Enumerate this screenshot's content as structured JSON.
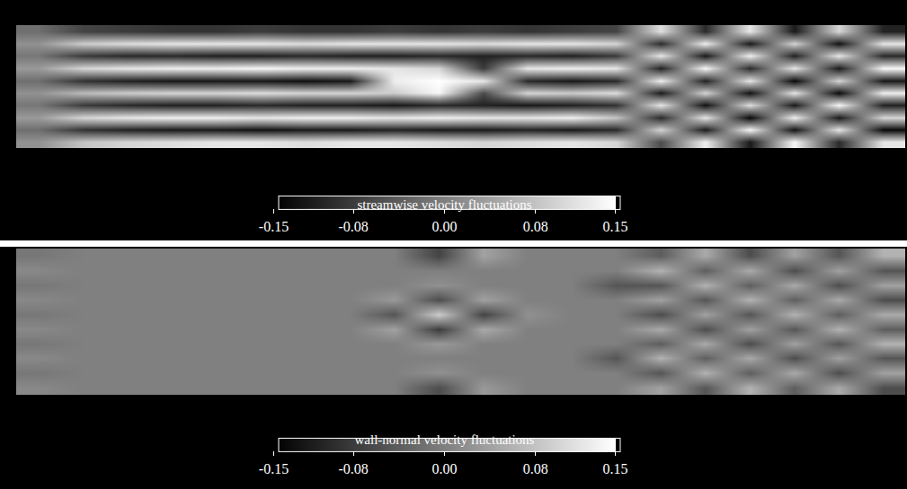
{
  "chart_data": [
    {
      "type": "heatmap",
      "colorbar_title": "streamwise velocity fluctuations",
      "tick_labels": false,
      "color_range": [
        -0.15,
        0.15
      ],
      "color_ticks": [
        -0.15,
        -0.08,
        {
          "value": 0,
          "label": "0.00"
        },
        0.08,
        0.15
      ],
      "cells": [
        [
          0.02,
          0.08,
          0.1,
          0.11,
          0.12,
          0.12,
          0.11,
          0.12,
          0.12,
          0.11,
          0.1,
          0.11,
          0.12,
          0.1,
          -0.06,
          0.13,
          -0.12,
          0.14,
          -0.1,
          0.12
        ],
        [
          -0.02,
          -0.09,
          -0.11,
          -0.12,
          -0.12,
          -0.13,
          -0.12,
          -0.12,
          -0.11,
          -0.12,
          -0.12,
          -0.11,
          -0.12,
          -0.1,
          0.1,
          -0.12,
          0.14,
          -0.13,
          0.12,
          -0.14
        ],
        [
          0.03,
          0.1,
          0.12,
          0.13,
          0.13,
          0.12,
          0.13,
          0.13,
          0.12,
          0.13,
          0.12,
          0.12,
          0.13,
          0.08,
          -0.1,
          0.12,
          -0.14,
          0.13,
          -0.12,
          0.1
        ],
        [
          -0.01,
          -0.08,
          -0.1,
          -0.11,
          -0.11,
          -0.1,
          -0.11,
          -0.11,
          -0.12,
          -0.1,
          -0.11,
          -0.12,
          -0.11,
          -0.09,
          0.12,
          -0.13,
          0.11,
          -0.12,
          0.14,
          -0.11
        ],
        [
          0.02,
          0.07,
          0.09,
          0.1,
          0.1,
          0.11,
          0.1,
          0.1,
          0.09,
          0.14,
          -0.06,
          0.1,
          0.09,
          0.11,
          -0.12,
          0.1,
          -0.13,
          0.12,
          -0.14,
          0.13
        ],
        [
          -0.02,
          -0.09,
          -0.11,
          -0.12,
          -0.12,
          -0.12,
          -0.13,
          -0.12,
          0.13,
          0.15,
          0.12,
          -0.1,
          -0.12,
          -0.1,
          0.13,
          -0.11,
          0.12,
          -0.14,
          0.1,
          -0.12
        ],
        [
          0.03,
          0.1,
          0.12,
          0.13,
          0.13,
          0.14,
          0.13,
          0.13,
          0.12,
          0.1,
          -0.08,
          0.12,
          0.13,
          0.12,
          -0.11,
          0.14,
          -0.1,
          0.12,
          -0.12,
          0.14
        ],
        [
          -0.01,
          -0.08,
          -0.1,
          -0.1,
          -0.11,
          -0.11,
          -0.1,
          -0.11,
          -0.11,
          -0.1,
          -0.11,
          -0.1,
          -0.11,
          -0.08,
          0.12,
          -0.12,
          0.13,
          -0.11,
          0.12,
          -0.1
        ],
        [
          0.02,
          0.09,
          0.11,
          0.12,
          0.12,
          0.12,
          0.11,
          0.12,
          0.12,
          0.12,
          0.11,
          0.12,
          0.12,
          0.1,
          -0.1,
          0.13,
          -0.12,
          0.1,
          -0.13,
          0.12
        ],
        [
          -0.02,
          -0.07,
          -0.08,
          -0.09,
          -0.09,
          -0.08,
          -0.09,
          -0.09,
          -0.08,
          -0.09,
          -0.08,
          -0.09,
          -0.08,
          -0.07,
          0.11,
          -0.1,
          0.12,
          -0.12,
          0.1,
          -0.11
        ]
      ]
    },
    {
      "type": "heatmap",
      "colorbar_title": "wall-normal velocity fluctuations",
      "tick_labels": false,
      "color_range": [
        -0.15,
        0.15
      ],
      "color_ticks": [
        -0.15,
        -0.08,
        {
          "value": 0,
          "label": "0.00"
        },
        0.08,
        0.15
      ],
      "cells": [
        [
          0.01,
          0,
          0,
          0,
          0,
          0,
          0,
          0,
          0,
          -0.06,
          0.03,
          0,
          0,
          0,
          0.04,
          -0.05,
          0.06,
          -0.04,
          0.05,
          -0.06
        ],
        [
          -0.01,
          0,
          0,
          0,
          0,
          0,
          0,
          0,
          0,
          0.02,
          0,
          0,
          0,
          0,
          -0.05,
          0.06,
          -0.04,
          0.05,
          -0.06,
          0.04
        ],
        [
          0.01,
          0,
          0,
          0,
          0,
          0,
          0,
          0,
          0,
          0,
          0,
          0,
          0,
          -0.05,
          0.06,
          -0.04,
          0.05,
          -0.06,
          0.04,
          -0.05
        ],
        [
          -0.01,
          0,
          0,
          0,
          0,
          0,
          0,
          0,
          0,
          0.03,
          0,
          0,
          0,
          0,
          -0.04,
          0.05,
          -0.06,
          0.04,
          -0.05,
          0.06
        ],
        [
          0.01,
          0,
          0,
          0,
          0,
          0,
          0,
          0,
          0.04,
          -0.08,
          0.05,
          0,
          0,
          0,
          0.05,
          -0.06,
          0.04,
          -0.05,
          0.06,
          -0.04
        ],
        [
          -0.01,
          0,
          0,
          0,
          0,
          0,
          0,
          0,
          -0.05,
          0.09,
          -0.07,
          0.02,
          0,
          0,
          -0.06,
          0.04,
          -0.05,
          0.06,
          -0.04,
          0.05
        ],
        [
          0.01,
          0,
          0,
          0,
          0,
          0,
          0,
          0,
          0.03,
          -0.06,
          0.04,
          0,
          0,
          0,
          0.04,
          -0.05,
          0.06,
          -0.04,
          0.05,
          -0.06
        ],
        [
          -0.01,
          0,
          0,
          0,
          0,
          0,
          0,
          0,
          0,
          0.02,
          0,
          0,
          0,
          -0.05,
          -0.05,
          0.06,
          -0.04,
          0.05,
          -0.06,
          0.04
        ],
        [
          0.01,
          0,
          0,
          0,
          0,
          0,
          0,
          0,
          0,
          0,
          0,
          0,
          0,
          0,
          0.06,
          -0.04,
          0.05,
          -0.06,
          0.04,
          -0.05
        ],
        [
          -0.01,
          0,
          0,
          0,
          0,
          0,
          0,
          0,
          0,
          -0.07,
          0.04,
          0,
          0,
          0,
          -0.04,
          0.05,
          -0.06,
          0.04,
          -0.05,
          0.06
        ]
      ]
    }
  ]
}
